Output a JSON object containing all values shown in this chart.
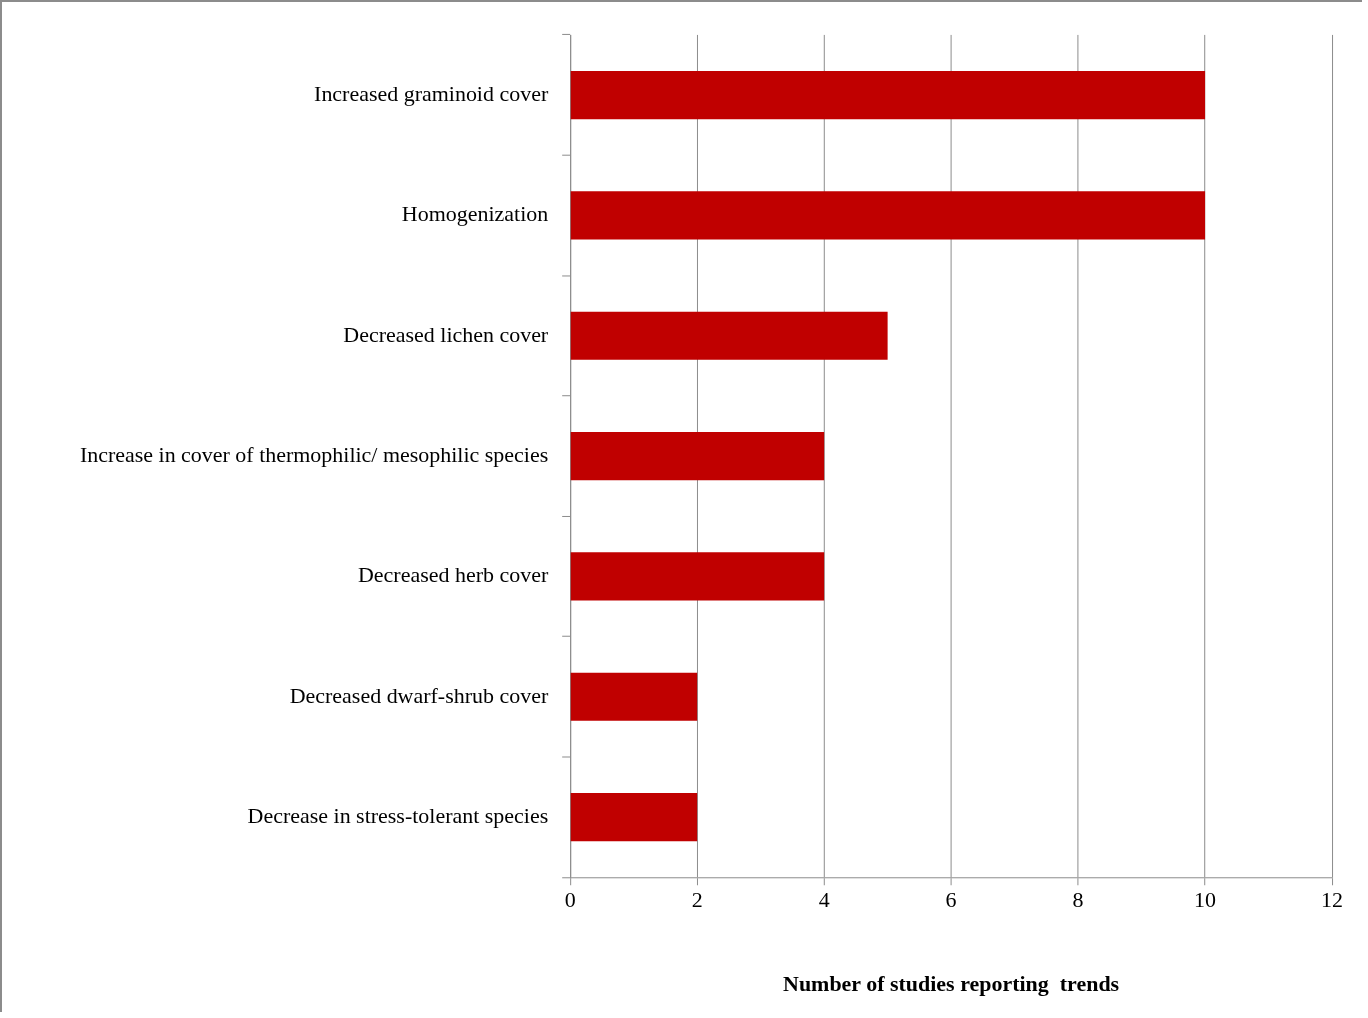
{
  "chart_data": {
    "type": "bar",
    "orientation": "horizontal",
    "xlabel": "Number of studies reporting  trends",
    "categories": [
      "Increased graminoid cover",
      "Homogenization",
      "Decreased lichen cover",
      "Increase in cover of thermophilic/ mesophilic species",
      "Decreased herb cover",
      "Decreased dwarf-shrub cover",
      "Decrease in stress-tolerant species"
    ],
    "values": [
      10,
      10,
      5,
      4,
      4,
      2,
      2
    ],
    "color": "#c00000",
    "xlim": [
      0,
      12
    ],
    "xticks": [
      0,
      2,
      4,
      6,
      8,
      10,
      12
    ],
    "grid": "x"
  }
}
